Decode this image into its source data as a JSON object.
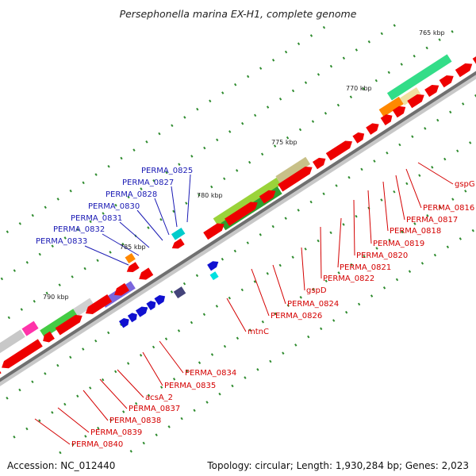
{
  "title": "Persephonella marina EX-H1, complete genome",
  "footer": {
    "accession": "Accession: NC_012440",
    "stats": "Topology: circular; Length: 1,930,284 bp; Genes: 2,023"
  },
  "kbp_ticks": [
    "765 kbp",
    "770 kbp",
    "775 kbp",
    "780 kbp",
    "785 kbp",
    "790 kbp"
  ],
  "gene_labels_forward": [
    "gspG",
    "PERMA_0816",
    "PERMA_0817",
    "PERMA_0818",
    "PERMA_0819",
    "PERMA_0820",
    "PERMA_0821",
    "PERMA_0822",
    "gspD",
    "PERMA_0824",
    "PERMA_0826",
    "mtnC"
  ],
  "gene_labels_reverse": [
    "PERMA_0834",
    "PERMA_0835",
    "acsA_2",
    "PERMA_0837",
    "PERMA_0838",
    "PERMA_0839",
    "PERMA_0840"
  ],
  "gene_labels_blue": [
    "PERMA_0825",
    "PERMA_0827",
    "PERMA_0828",
    "PERMA_0830",
    "PERMA_0831",
    "PERMA_0832",
    "PERMA_0833"
  ],
  "colors": {
    "cds": "#ee0000",
    "blue_feature": "#1010d0",
    "backbone": "#808080",
    "tick_dots": "#2e8b2e",
    "label_red": "#d40000",
    "label_blue": "#1a1ab4"
  }
}
